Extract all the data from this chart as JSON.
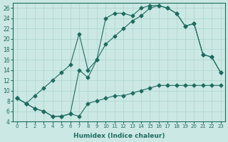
{
  "xlabel": "Humidex (Indice chaleur)",
  "bg_color": "#cce8e4",
  "line_color": "#1e6b60",
  "grid_color": "#aad4ce",
  "xlim": [
    -0.5,
    23.5
  ],
  "ylim": [
    4,
    27
  ],
  "yticks": [
    4,
    6,
    8,
    10,
    12,
    14,
    16,
    18,
    20,
    22,
    24,
    26
  ],
  "xticks": [
    0,
    1,
    2,
    3,
    4,
    5,
    6,
    7,
    8,
    9,
    10,
    11,
    12,
    13,
    14,
    15,
    16,
    17,
    18,
    19,
    20,
    21,
    22,
    23
  ],
  "line1_x": [
    0,
    1,
    2,
    3,
    4,
    5,
    6,
    7,
    8,
    9,
    10,
    11,
    12,
    13,
    14,
    15,
    16,
    17,
    18,
    19,
    20,
    21,
    22,
    23
  ],
  "line1_y": [
    8.5,
    7.5,
    6.5,
    6.0,
    5.0,
    5.0,
    5.5,
    5.0,
    7.5,
    8.0,
    8.5,
    9.0,
    9.0,
    9.5,
    10.0,
    10.5,
    11.0,
    11.0,
    11.0,
    11.0,
    11.0,
    11.0,
    11.0,
    11.0
  ],
  "line2_x": [
    0,
    1,
    2,
    3,
    4,
    5,
    6,
    7,
    8,
    9,
    10,
    11,
    12,
    13,
    14,
    15,
    16,
    17,
    18,
    19,
    20,
    21,
    22,
    23
  ],
  "line2_y": [
    8.5,
    7.5,
    9.0,
    10.5,
    12.0,
    13.5,
    15.0,
    21.0,
    14.0,
    16.0,
    24.0,
    25.0,
    25.0,
    24.5,
    26.0,
    26.5,
    26.5,
    26.0,
    25.0,
    22.5,
    23.0,
    17.0,
    16.5,
    13.5
  ],
  "line3_x": [
    0,
    1,
    2,
    3,
    4,
    5,
    6,
    7,
    8,
    9,
    10,
    11,
    12,
    13,
    14,
    15,
    16,
    17,
    18,
    19,
    20,
    21,
    22,
    23
  ],
  "line3_y": [
    8.5,
    7.5,
    6.5,
    6.0,
    5.0,
    5.0,
    5.5,
    14.0,
    12.5,
    16.0,
    19.0,
    20.5,
    22.0,
    23.5,
    24.5,
    26.0,
    26.5,
    26.0,
    25.0,
    22.5,
    23.0,
    17.0,
    16.5,
    13.5
  ]
}
